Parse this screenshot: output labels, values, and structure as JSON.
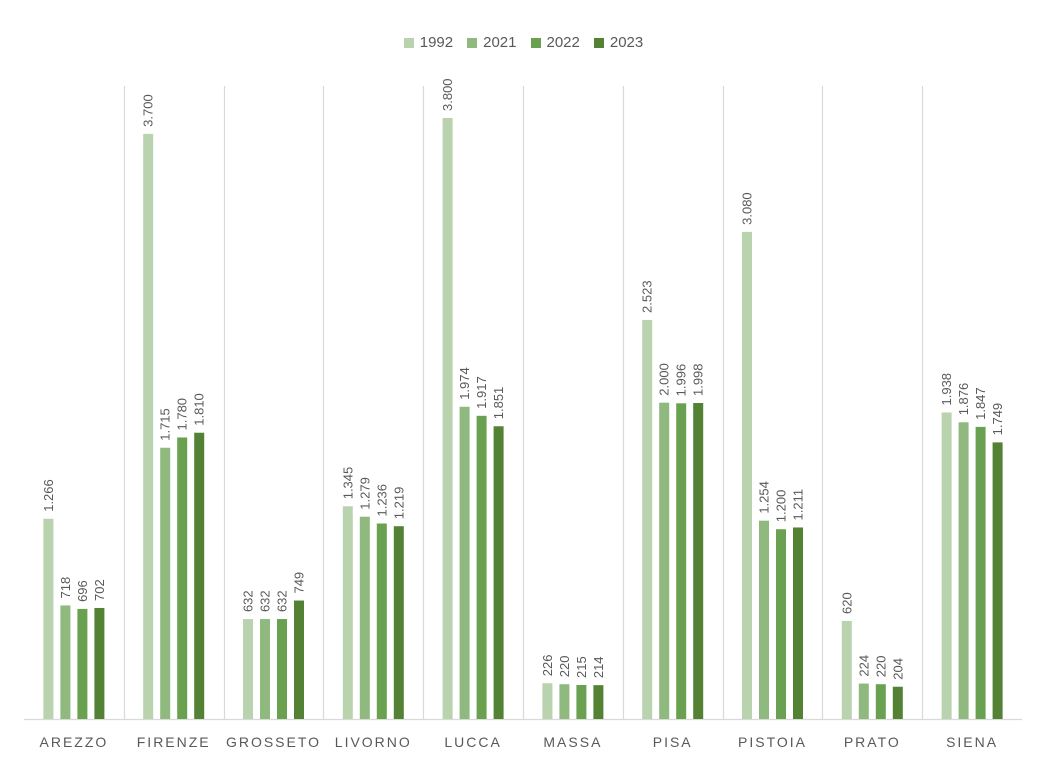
{
  "chart_data": {
    "type": "bar",
    "categories": [
      "AREZZO",
      "FIRENZE",
      "GROSSETO",
      "LIVORNO",
      "LUCCA",
      "MASSA",
      "PISA",
      "PISTOIA",
      "PRATO",
      "SIENA"
    ],
    "series": [
      {
        "name": "1992",
        "color": "#b9d3ae",
        "values": [
          1266,
          3700,
          632,
          1345,
          3800,
          226,
          2523,
          3080,
          620,
          1938
        ],
        "labels": [
          "1.266",
          "3.700",
          "632",
          "1.345",
          "3.800",
          "226",
          "2.523",
          "3.080",
          "620",
          "1.938"
        ]
      },
      {
        "name": "2021",
        "color": "#8fb97f",
        "values": [
          718,
          1715,
          632,
          1279,
          1974,
          220,
          2000,
          1254,
          224,
          1876
        ],
        "labels": [
          "718",
          "1.715",
          "632",
          "1.279",
          "1.974",
          "220",
          "2.000",
          "1.254",
          "224",
          "1.876"
        ]
      },
      {
        "name": "2022",
        "color": "#6aa150",
        "values": [
          696,
          1780,
          632,
          1236,
          1917,
          215,
          1996,
          1200,
          220,
          1847
        ],
        "labels": [
          "696",
          "1.780",
          "632",
          "1.236",
          "1.917",
          "215",
          "1.996",
          "1.200",
          "220",
          "1.847"
        ]
      },
      {
        "name": "2023",
        "color": "#548235",
        "values": [
          702,
          1810,
          749,
          1219,
          1851,
          214,
          1998,
          1211,
          204,
          1749
        ],
        "labels": [
          "702",
          "1.810",
          "749",
          "1.219",
          "1.851",
          "214",
          "1.998",
          "1.211",
          "204",
          "1.749"
        ]
      }
    ],
    "ylim": [
      0,
      4000
    ],
    "legend_position": "top",
    "grid": "vertical category separators",
    "title": "",
    "xlabel": "",
    "ylabel": ""
  }
}
